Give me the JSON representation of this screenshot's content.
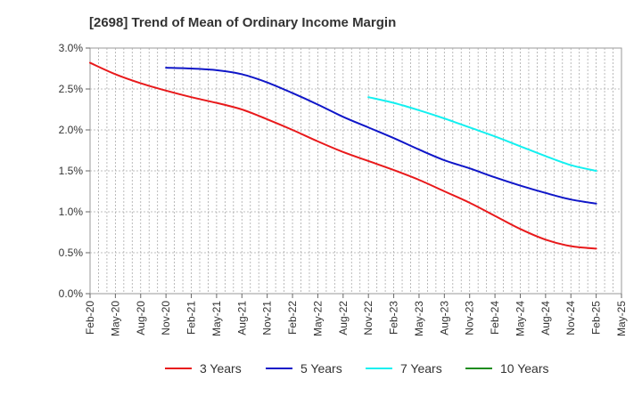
{
  "chart_data": {
    "type": "line",
    "title": "[2698]  Trend of Mean of Ordinary Income Margin",
    "xlabel": "",
    "ylabel": "",
    "x_ticks": [
      "Feb-20",
      "May-20",
      "Aug-20",
      "Nov-20",
      "Feb-21",
      "May-21",
      "Aug-21",
      "Nov-21",
      "Feb-22",
      "May-22",
      "Aug-22",
      "Nov-22",
      "Feb-23",
      "May-23",
      "Aug-23",
      "Nov-23",
      "Feb-24",
      "May-24",
      "Aug-24",
      "Nov-24",
      "Feb-25",
      "May-25"
    ],
    "y_ticks": [
      "0.0%",
      "0.5%",
      "1.0%",
      "1.5%",
      "2.0%",
      "2.5%",
      "3.0%"
    ],
    "ylim": [
      0,
      3.0
    ],
    "y_unit": "%",
    "grid": true,
    "legend_position": "bottom",
    "series": [
      {
        "name": "3 Years",
        "color": "#e8191b",
        "x": [
          "Feb-20",
          "May-20",
          "Aug-20",
          "Nov-20",
          "Feb-21",
          "May-21",
          "Aug-21",
          "Nov-21",
          "Feb-22",
          "May-22",
          "Aug-22",
          "Nov-22",
          "Feb-23",
          "May-23",
          "Aug-23",
          "Nov-23",
          "Feb-24",
          "May-24",
          "Aug-24",
          "Nov-24",
          "Feb-25"
        ],
        "y": [
          2.82,
          2.68,
          2.57,
          2.48,
          2.4,
          2.33,
          2.25,
          2.13,
          2.0,
          1.86,
          1.73,
          1.62,
          1.51,
          1.39,
          1.25,
          1.11,
          0.95,
          0.79,
          0.66,
          0.58,
          0.55
        ]
      },
      {
        "name": "5 Years",
        "color": "#0f16c8",
        "x": [
          "Nov-20",
          "Feb-21",
          "May-21",
          "Aug-21",
          "Nov-21",
          "Feb-22",
          "May-22",
          "Aug-22",
          "Nov-22",
          "Feb-23",
          "May-23",
          "Aug-23",
          "Nov-23",
          "Feb-24",
          "May-24",
          "Aug-24",
          "Nov-24",
          "Feb-25"
        ],
        "y": [
          2.76,
          2.75,
          2.73,
          2.68,
          2.58,
          2.45,
          2.31,
          2.16,
          2.03,
          1.9,
          1.76,
          1.63,
          1.53,
          1.42,
          1.32,
          1.23,
          1.15,
          1.1
        ]
      },
      {
        "name": "7 Years",
        "color": "#13f0f0",
        "x": [
          "Nov-22",
          "Feb-23",
          "May-23",
          "Aug-23",
          "Nov-23",
          "Feb-24",
          "May-24",
          "Aug-24",
          "Nov-24",
          "Feb-25"
        ],
        "y": [
          2.4,
          2.33,
          2.24,
          2.14,
          2.03,
          1.92,
          1.8,
          1.68,
          1.57,
          1.5
        ]
      },
      {
        "name": "10 Years",
        "color": "#1e8c1e",
        "x": [],
        "y": []
      }
    ]
  }
}
